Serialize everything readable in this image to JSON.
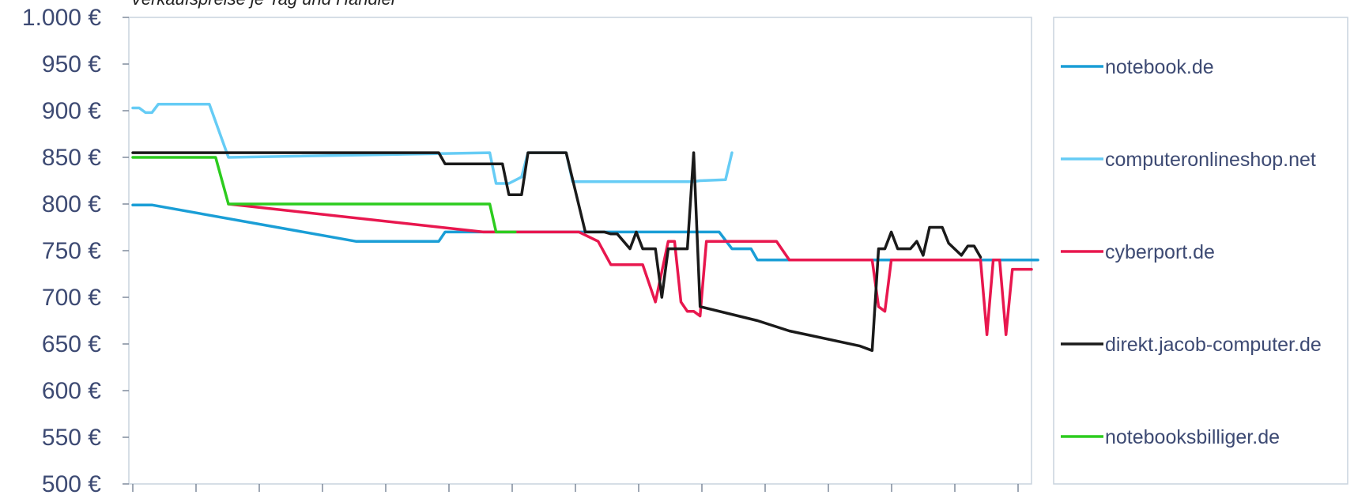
{
  "chart_data": {
    "type": "line",
    "subtitle": "Verkaufspreise je Tag und Händler",
    "x_count": 142,
    "ylim": [
      500,
      1000
    ],
    "yticks": [
      1000,
      950,
      900,
      850,
      800,
      750,
      700,
      650,
      600,
      550,
      500
    ],
    "ytick_labels": [
      "1.000 €",
      "950 €",
      "900 €",
      "850 €",
      "800 €",
      "750 €",
      "700 €",
      "650 €",
      "600 €",
      "550 €",
      "500 €"
    ],
    "grid": false,
    "legend_position": "right",
    "series": [
      {
        "name": "notebook.de",
        "color": "#1a9ed6",
        "points": [
          [
            0,
            799
          ],
          [
            3,
            799
          ],
          [
            35,
            760
          ],
          [
            48,
            760
          ],
          [
            49,
            770
          ],
          [
            92,
            770
          ],
          [
            94,
            752
          ],
          [
            97,
            752
          ],
          [
            98,
            740
          ],
          [
            142,
            740
          ]
        ]
      },
      {
        "name": "computeronlineshop.net",
        "color": "#66ccf5",
        "points": [
          [
            0,
            903
          ],
          [
            1,
            903
          ],
          [
            2,
            898
          ],
          [
            3,
            898
          ],
          [
            4,
            907
          ],
          [
            12,
            907
          ],
          [
            15,
            850
          ],
          [
            56,
            855
          ],
          [
            57,
            822
          ],
          [
            59,
            822
          ],
          [
            61,
            829
          ],
          [
            62,
            855
          ],
          [
            68,
            855
          ],
          [
            69,
            824
          ],
          [
            88,
            824
          ],
          [
            89,
            825
          ],
          [
            93,
            826
          ],
          [
            94,
            855
          ]
        ]
      },
      {
        "name": "cyberport.de",
        "color": "#e8174e",
        "points": [
          [
            15,
            800
          ],
          [
            55,
            770
          ],
          [
            70,
            770
          ],
          [
            73,
            760
          ],
          [
            75,
            735
          ],
          [
            80,
            735
          ],
          [
            82,
            695
          ],
          [
            84,
            760
          ],
          [
            85,
            760
          ],
          [
            86,
            695
          ],
          [
            87,
            685
          ],
          [
            88,
            685
          ],
          [
            89,
            680
          ],
          [
            90,
            760
          ],
          [
            101,
            760
          ],
          [
            103,
            740
          ],
          [
            116,
            740
          ],
          [
            117,
            690
          ],
          [
            118,
            685
          ],
          [
            119,
            740
          ],
          [
            133,
            740
          ],
          [
            134,
            660
          ],
          [
            135,
            740
          ],
          [
            136,
            740
          ],
          [
            137,
            660
          ],
          [
            138,
            730
          ],
          [
            141,
            730
          ]
        ]
      },
      {
        "name": "direkt.jacob-computer.de",
        "color": "#1a1a1a",
        "points": [
          [
            0,
            855
          ],
          [
            48,
            855
          ],
          [
            49,
            843
          ],
          [
            58,
            843
          ],
          [
            59,
            810
          ],
          [
            61,
            810
          ],
          [
            62,
            855
          ],
          [
            68,
            855
          ],
          [
            71,
            770
          ],
          [
            74,
            770
          ],
          [
            75,
            768
          ],
          [
            76,
            768
          ],
          [
            78,
            752
          ],
          [
            79,
            770
          ],
          [
            80,
            752
          ],
          [
            81,
            752
          ],
          [
            82,
            752
          ],
          [
            83,
            700
          ],
          [
            84,
            752
          ],
          [
            86,
            752
          ],
          [
            87,
            752
          ],
          [
            88,
            855
          ],
          [
            89,
            690
          ],
          [
            98,
            675
          ],
          [
            103,
            664
          ],
          [
            114,
            648
          ],
          [
            116,
            643
          ],
          [
            117,
            752
          ],
          [
            118,
            752
          ],
          [
            119,
            770
          ],
          [
            120,
            752
          ],
          [
            122,
            752
          ],
          [
            123,
            760
          ],
          [
            124,
            745
          ],
          [
            125,
            775
          ],
          [
            127,
            775
          ],
          [
            128,
            758
          ],
          [
            130,
            745
          ],
          [
            131,
            755
          ],
          [
            132,
            755
          ],
          [
            133,
            743
          ]
        ]
      },
      {
        "name": "notebooksbilliger.de",
        "color": "#2ccc1e",
        "points": [
          [
            0,
            850
          ],
          [
            13,
            850
          ],
          [
            15,
            800
          ],
          [
            56,
            800
          ],
          [
            57,
            770
          ],
          [
            60,
            770
          ]
        ]
      }
    ]
  }
}
